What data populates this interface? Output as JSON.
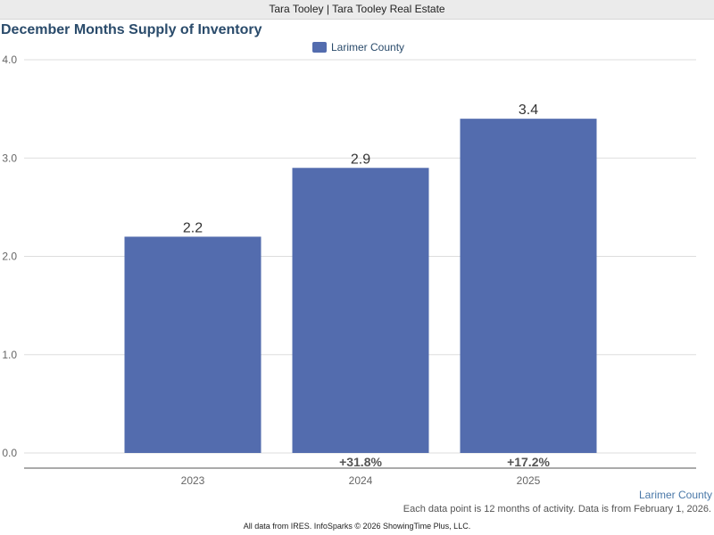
{
  "header": {
    "agent_line": "Tara Tooley | Tara Tooley Real Estate"
  },
  "chart_data": {
    "type": "bar",
    "title": "December Months Supply of Inventory",
    "categories": [
      "2023",
      "2024",
      "2025"
    ],
    "series": [
      {
        "name": "Larimer County",
        "values": [
          2.2,
          2.9,
          3.4
        ],
        "color": "#536cae"
      }
    ],
    "data_labels": [
      "2.2",
      "2.9",
      "3.4"
    ],
    "change_labels": [
      "",
      "+31.8%",
      "+17.2%"
    ],
    "y_ticks": [
      "0.0",
      "1.0",
      "2.0",
      "3.0",
      "4.0"
    ],
    "ylim": [
      0,
      4
    ],
    "grid": true,
    "legend_position": "top-center"
  },
  "series_label": "Larimer County",
  "footnote": "Each data point is 12 months of activity. Data is from February 1, 2026.",
  "credit": "All data from IRES. InfoSparks © 2026 ShowingTime Plus, LLC.",
  "colors": {
    "bar": "#536cae",
    "title": "#2a4b6b",
    "grid": "#dddddd",
    "axis": "#666666"
  }
}
